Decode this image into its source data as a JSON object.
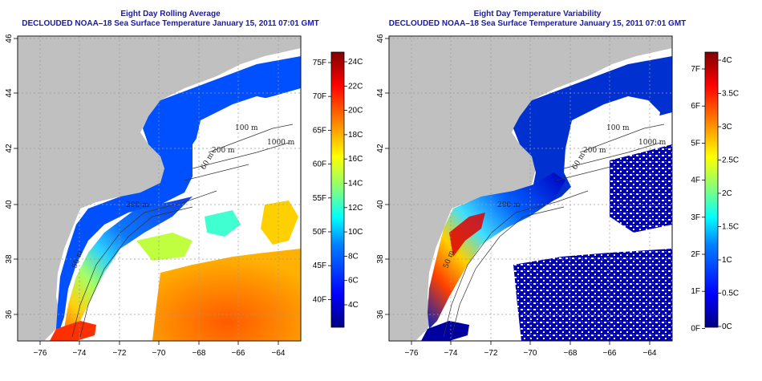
{
  "panels": [
    {
      "id": "avg",
      "title_line1": "Eight Day Rolling Average",
      "title_line2": "DECLOUDED NOAA–18 Sea Surface Temperature January 15, 2011 07:01 GMT",
      "colorbar": {
        "f_labels": [
          "75F",
          "70F",
          "65F",
          "60F",
          "55F",
          "50F",
          "45F",
          "40F"
        ],
        "c_labels": [
          "24C",
          "22C",
          "20C",
          "18C",
          "16C",
          "14C",
          "12C",
          "10C",
          "8C",
          "6C",
          "4C"
        ],
        "colors": [
          "#00007f",
          "#0000ff",
          "#0080ff",
          "#00ffff",
          "#80ff80",
          "#ffff00",
          "#ff8000",
          "#ff0000",
          "#7f0000"
        ]
      },
      "contours": [
        "100 m",
        "200 m",
        "1000 m",
        "200 m",
        "60 m",
        "50 m"
      ]
    },
    {
      "id": "var",
      "title_line1": "Eight Day Temperature Variability",
      "title_line2": "DECLOUDED NOAA–18 Sea Surface Temperature January 15, 2011 07:01 GMT",
      "colorbar": {
        "f_labels": [
          "7F",
          "6F",
          "5F",
          "4F",
          "3F",
          "2F",
          "1F",
          "0F"
        ],
        "c_labels": [
          "4C",
          "3.5C",
          "3C",
          "2.5C",
          "2C",
          "1.5C",
          "1C",
          "0.5C",
          "0C"
        ],
        "colors": [
          "#00007f",
          "#0000ff",
          "#0080ff",
          "#00ffff",
          "#80ff80",
          "#ffff00",
          "#ff8000",
          "#ff0000",
          "#7f0000"
        ]
      },
      "contours": [
        "100 m",
        "200 m",
        "1000 m",
        "200 m",
        "60 m",
        "50 m"
      ]
    }
  ],
  "axes": {
    "x_ticks": [
      "−76",
      "−74",
      "−72",
      "−70",
      "−68",
      "−66",
      "−64"
    ],
    "y_ticks": [
      "46",
      "44",
      "42",
      "40",
      "38",
      "36"
    ],
    "land_color": "#c0c0c0",
    "ocean_color": "#ffffff"
  }
}
